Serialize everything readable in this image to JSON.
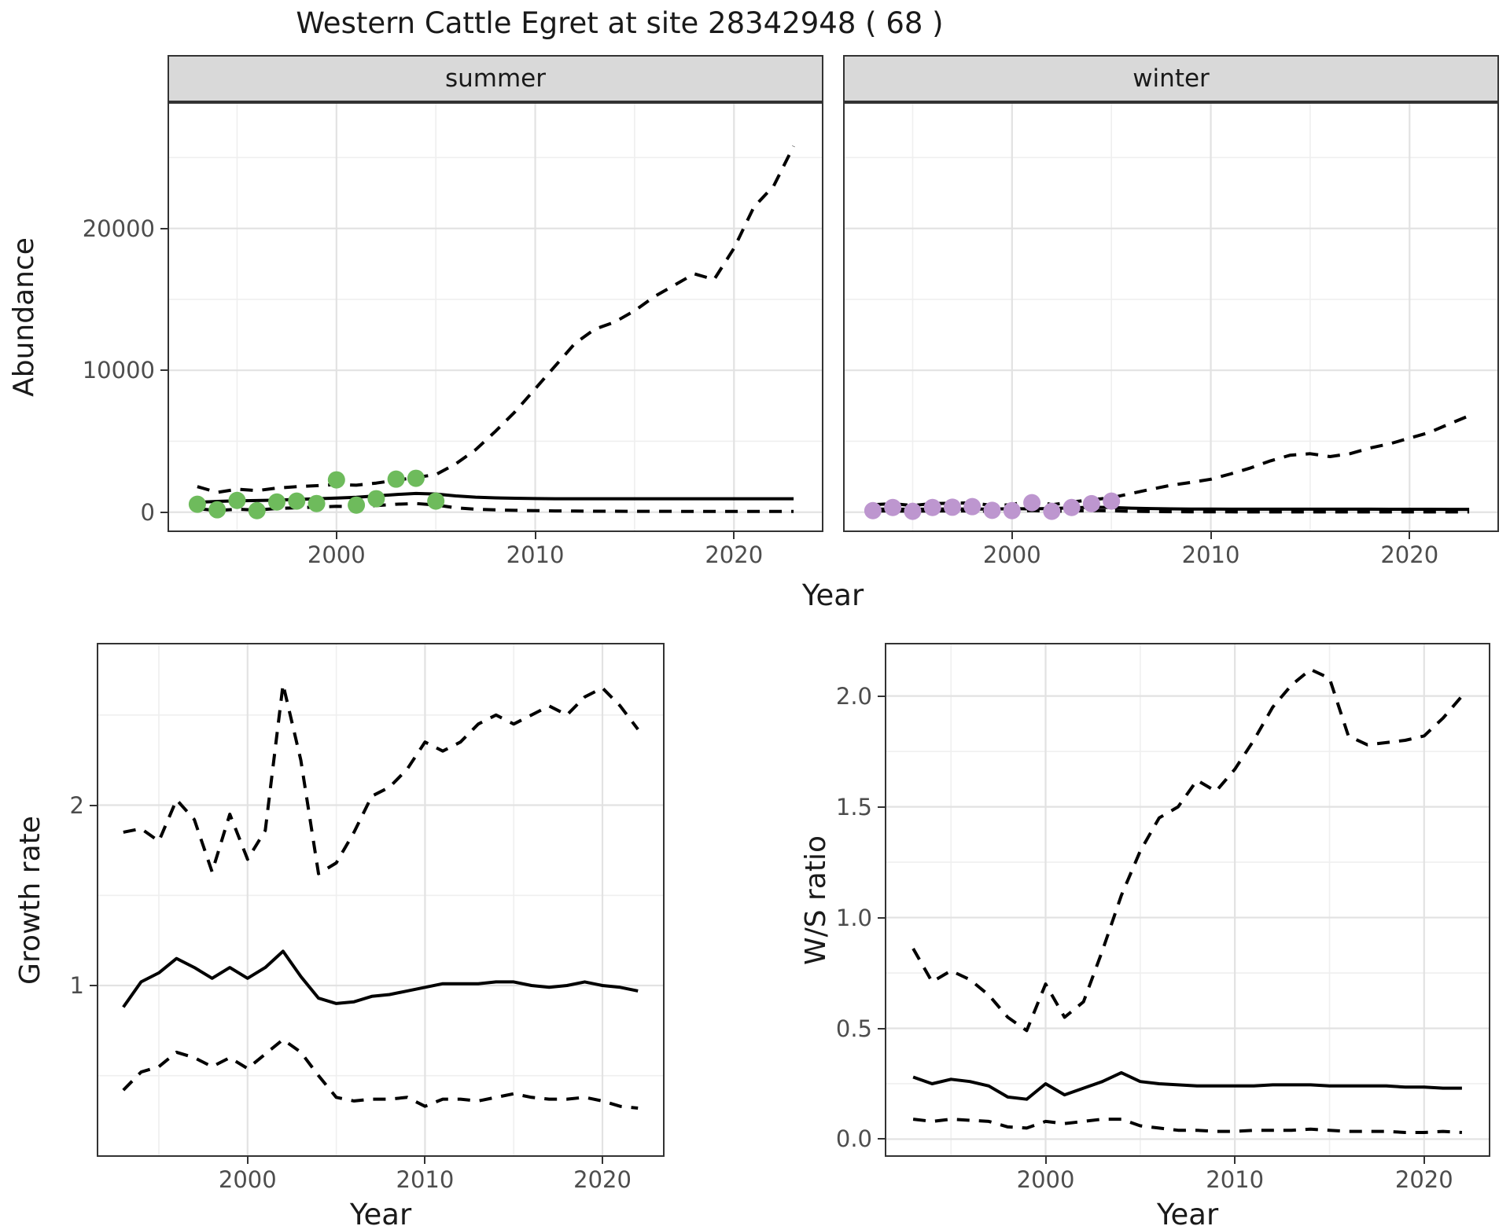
{
  "title": "Western Cattle Egret at site 28342948 ( 68 )",
  "facets": {
    "summer": "summer",
    "winter": "winter"
  },
  "axes": {
    "abundance": "Abundance",
    "year": "Year",
    "growth_rate": "Growth rate",
    "ws_ratio": "W/S ratio"
  },
  "colors": {
    "summer_points": "#6ebb5c",
    "winter_points": "#bd96cf",
    "line": "#000000",
    "strip_bg": "#d9d9d9",
    "grid_major": "#e2e2e2",
    "grid_minor": "#efefef",
    "panel_border": "#333333",
    "tick_text": "#4d4d4d"
  },
  "chart_data": [
    {
      "id": "abundance-summer",
      "type": "line",
      "strip": "summer",
      "ylabel": "Abundance",
      "xlabel": "Year",
      "xlim": [
        1991.5,
        2024.5
      ],
      "ylim": [
        -1400,
        28900
      ],
      "xticks": {
        "major": [
          2000,
          2010,
          2020
        ],
        "minor": [
          1995,
          2005,
          2015
        ],
        "labels": [
          "2000",
          "2010",
          "2020"
        ]
      },
      "yticks": {
        "major": [
          0,
          10000,
          20000
        ],
        "minor": [
          5000,
          15000,
          25000
        ],
        "labels": [
          "0",
          "10000",
          "20000"
        ]
      },
      "x": [
        1993,
        1994,
        1995,
        1996,
        1997,
        1998,
        1999,
        2000,
        2001,
        2002,
        2003,
        2004,
        2005,
        2006,
        2007,
        2008,
        2009,
        2010,
        2011,
        2012,
        2013,
        2014,
        2015,
        2016,
        2017,
        2018,
        2019,
        2020,
        2021,
        2022,
        2023
      ],
      "series": [
        {
          "name": "upper_ci",
          "style": "dashed",
          "y": [
            1800,
            1400,
            1620,
            1520,
            1700,
            1800,
            1870,
            1950,
            1900,
            2050,
            2250,
            2450,
            2650,
            3400,
            4400,
            5700,
            7100,
            8700,
            10300,
            11900,
            12900,
            13400,
            14200,
            15200,
            16000,
            16800,
            16400,
            18600,
            21500,
            23000,
            25800
          ]
        },
        {
          "name": "estimate",
          "style": "solid",
          "y": [
            700,
            760,
            800,
            820,
            850,
            900,
            950,
            1000,
            1050,
            1150,
            1250,
            1320,
            1280,
            1150,
            1060,
            1010,
            980,
            960,
            950,
            950,
            950,
            950,
            950,
            950,
            950,
            950,
            950,
            950,
            950,
            950,
            950
          ]
        },
        {
          "name": "lower_ci",
          "style": "dashed",
          "y": [
            250,
            120,
            210,
            150,
            260,
            310,
            360,
            410,
            390,
            460,
            560,
            610,
            510,
            310,
            210,
            160,
            130,
            110,
            90,
            80,
            70,
            70,
            60,
            60,
            55,
            55,
            50,
            50,
            50,
            50,
            50
          ]
        }
      ],
      "points": {
        "name": "summer-observations",
        "color_key": "summer_points",
        "x": [
          1993,
          1994,
          1995,
          1996,
          1997,
          1998,
          1999,
          2000,
          2001,
          2002,
          2003,
          2004,
          2005
        ],
        "y": [
          560,
          170,
          830,
          110,
          720,
          780,
          610,
          2280,
          500,
          950,
          2330,
          2390,
          780
        ]
      }
    },
    {
      "id": "abundance-winter",
      "type": "line",
      "strip": "winter",
      "ylabel": "Abundance",
      "xlabel": "Year",
      "xlim": [
        1991.5,
        2024.5
      ],
      "ylim": [
        -1400,
        28900
      ],
      "xticks": {
        "major": [
          2000,
          2010,
          2020
        ],
        "minor": [
          1995,
          2005,
          2015
        ],
        "labels": [
          "2000",
          "2010",
          "2020"
        ]
      },
      "yticks": {
        "major": [
          0,
          10000,
          20000
        ],
        "minor": [
          5000,
          15000,
          25000
        ],
        "labels": [
          "0",
          "10000",
          "20000"
        ]
      },
      "x": [
        1993,
        1994,
        1995,
        1996,
        1997,
        1998,
        1999,
        2000,
        2001,
        2002,
        2003,
        2004,
        2005,
        2006,
        2007,
        2008,
        2009,
        2010,
        2011,
        2012,
        2013,
        2014,
        2015,
        2016,
        2017,
        2018,
        2019,
        2020,
        2021,
        2022,
        2023
      ],
      "series": [
        {
          "name": "upper_ci",
          "style": "dashed",
          "y": [
            520,
            600,
            470,
            610,
            630,
            660,
            470,
            520,
            900,
            520,
            720,
            870,
            1020,
            1320,
            1620,
            1900,
            2100,
            2320,
            2700,
            3120,
            3620,
            4020,
            4120,
            3920,
            4120,
            4520,
            4820,
            5220,
            5620,
            6220,
            6800
          ]
        },
        {
          "name": "estimate",
          "style": "solid",
          "y": [
            210,
            215,
            205,
            220,
            230,
            225,
            215,
            250,
            235,
            260,
            300,
            350,
            335,
            285,
            255,
            235,
            225,
            218,
            212,
            210,
            210,
            210,
            210,
            210,
            210,
            210,
            208,
            206,
            205,
            203,
            200
          ]
        },
        {
          "name": "lower_ci",
          "style": "dashed",
          "y": [
            80,
            90,
            70,
            90,
            90,
            90,
            60,
            70,
            120,
            60,
            90,
            110,
            100,
            60,
            45,
            35,
            30,
            25,
            22,
            20,
            20,
            20,
            20,
            20,
            20,
            20,
            20,
            20,
            20,
            20,
            20
          ]
        }
      ],
      "points": {
        "name": "winter-observations",
        "color_key": "winter_points",
        "x": [
          1993,
          1994,
          1995,
          1996,
          1997,
          1998,
          1999,
          2000,
          2001,
          2002,
          2003,
          2004,
          2005
        ],
        "y": [
          110,
          330,
          60,
          330,
          350,
          390,
          130,
          110,
          670,
          60,
          330,
          600,
          780
        ]
      }
    },
    {
      "id": "growth-rate",
      "type": "line",
      "strip": null,
      "ylabel": "Growth rate",
      "xlabel": "Year",
      "xlim": [
        1991.5,
        2023.5
      ],
      "ylim": [
        0.05,
        2.9
      ],
      "xticks": {
        "major": [
          2000,
          2010,
          2020
        ],
        "minor": [
          1995,
          2005,
          2015
        ],
        "labels": [
          "2000",
          "2010",
          "2020"
        ]
      },
      "yticks": {
        "major": [
          1,
          2
        ],
        "minor": [
          0.5,
          1.5,
          2.5
        ],
        "labels": [
          "1",
          "2"
        ]
      },
      "x": [
        1993,
        1994,
        1995,
        1996,
        1997,
        1998,
        1999,
        2000,
        2001,
        2002,
        2003,
        2004,
        2005,
        2006,
        2007,
        2008,
        2009,
        2010,
        2011,
        2012,
        2013,
        2014,
        2015,
        2016,
        2017,
        2018,
        2019,
        2020,
        2021,
        2022
      ],
      "series": [
        {
          "name": "upper_ci",
          "style": "dashed",
          "y": [
            1.85,
            1.87,
            1.8,
            2.03,
            1.92,
            1.63,
            1.95,
            1.7,
            1.86,
            2.67,
            2.25,
            1.62,
            1.68,
            1.85,
            2.05,
            2.1,
            2.2,
            2.35,
            2.3,
            2.35,
            2.45,
            2.5,
            2.45,
            2.5,
            2.55,
            2.5,
            2.6,
            2.65,
            2.55,
            2.42
          ]
        },
        {
          "name": "estimate",
          "style": "solid",
          "y": [
            0.88,
            1.02,
            1.07,
            1.15,
            1.1,
            1.04,
            1.1,
            1.04,
            1.1,
            1.19,
            1.05,
            0.93,
            0.9,
            0.91,
            0.94,
            0.95,
            0.97,
            0.99,
            1.01,
            1.01,
            1.01,
            1.02,
            1.02,
            1.0,
            0.99,
            1.0,
            1.02,
            1.0,
            0.99,
            0.97
          ]
        },
        {
          "name": "lower_ci",
          "style": "dashed",
          "y": [
            0.42,
            0.52,
            0.55,
            0.63,
            0.6,
            0.55,
            0.6,
            0.54,
            0.62,
            0.7,
            0.63,
            0.5,
            0.38,
            0.36,
            0.37,
            0.37,
            0.38,
            0.33,
            0.37,
            0.37,
            0.36,
            0.38,
            0.4,
            0.38,
            0.37,
            0.37,
            0.38,
            0.36,
            0.33,
            0.32
          ]
        }
      ],
      "points": null
    },
    {
      "id": "ws-ratio",
      "type": "line",
      "strip": null,
      "ylabel": "W/S ratio",
      "xlabel": "Year",
      "xlim": [
        1991.5,
        2023.5
      ],
      "ylim": [
        -0.08,
        2.24
      ],
      "xticks": {
        "major": [
          2000,
          2010,
          2020
        ],
        "minor": [
          1995,
          2005,
          2015
        ],
        "labels": [
          "2000",
          "2010",
          "2020"
        ]
      },
      "yticks": {
        "major": [
          0.0,
          0.5,
          1.0,
          1.5,
          2.0
        ],
        "minor": [
          0.25,
          0.75,
          1.25,
          1.75
        ],
        "labels": [
          "0.0",
          "0.5",
          "1.0",
          "1.5",
          "2.0"
        ]
      },
      "x": [
        1993,
        1994,
        1995,
        1996,
        1997,
        1998,
        1999,
        2000,
        2001,
        2002,
        2003,
        2004,
        2005,
        2006,
        2007,
        2008,
        2009,
        2010,
        2011,
        2012,
        2013,
        2014,
        2015,
        2016,
        2017,
        2018,
        2019,
        2020,
        2021,
        2022
      ],
      "series": [
        {
          "name": "upper_ci",
          "style": "dashed",
          "y": [
            0.86,
            0.71,
            0.76,
            0.72,
            0.65,
            0.55,
            0.49,
            0.7,
            0.55,
            0.62,
            0.85,
            1.1,
            1.3,
            1.45,
            1.5,
            1.62,
            1.57,
            1.67,
            1.8,
            1.95,
            2.05,
            2.12,
            2.08,
            1.82,
            1.78,
            1.79,
            1.8,
            1.82,
            1.9,
            2.0
          ]
        },
        {
          "name": "estimate",
          "style": "solid",
          "y": [
            0.28,
            0.25,
            0.27,
            0.26,
            0.24,
            0.19,
            0.18,
            0.25,
            0.2,
            0.23,
            0.26,
            0.3,
            0.26,
            0.25,
            0.245,
            0.24,
            0.24,
            0.24,
            0.24,
            0.245,
            0.245,
            0.245,
            0.24,
            0.24,
            0.24,
            0.24,
            0.235,
            0.235,
            0.23,
            0.23
          ]
        },
        {
          "name": "lower_ci",
          "style": "dashed",
          "y": [
            0.09,
            0.08,
            0.09,
            0.085,
            0.08,
            0.055,
            0.05,
            0.08,
            0.07,
            0.08,
            0.09,
            0.09,
            0.06,
            0.05,
            0.04,
            0.04,
            0.035,
            0.035,
            0.04,
            0.04,
            0.04,
            0.045,
            0.04,
            0.035,
            0.035,
            0.035,
            0.03,
            0.03,
            0.035,
            0.03
          ]
        }
      ],
      "points": null
    }
  ]
}
